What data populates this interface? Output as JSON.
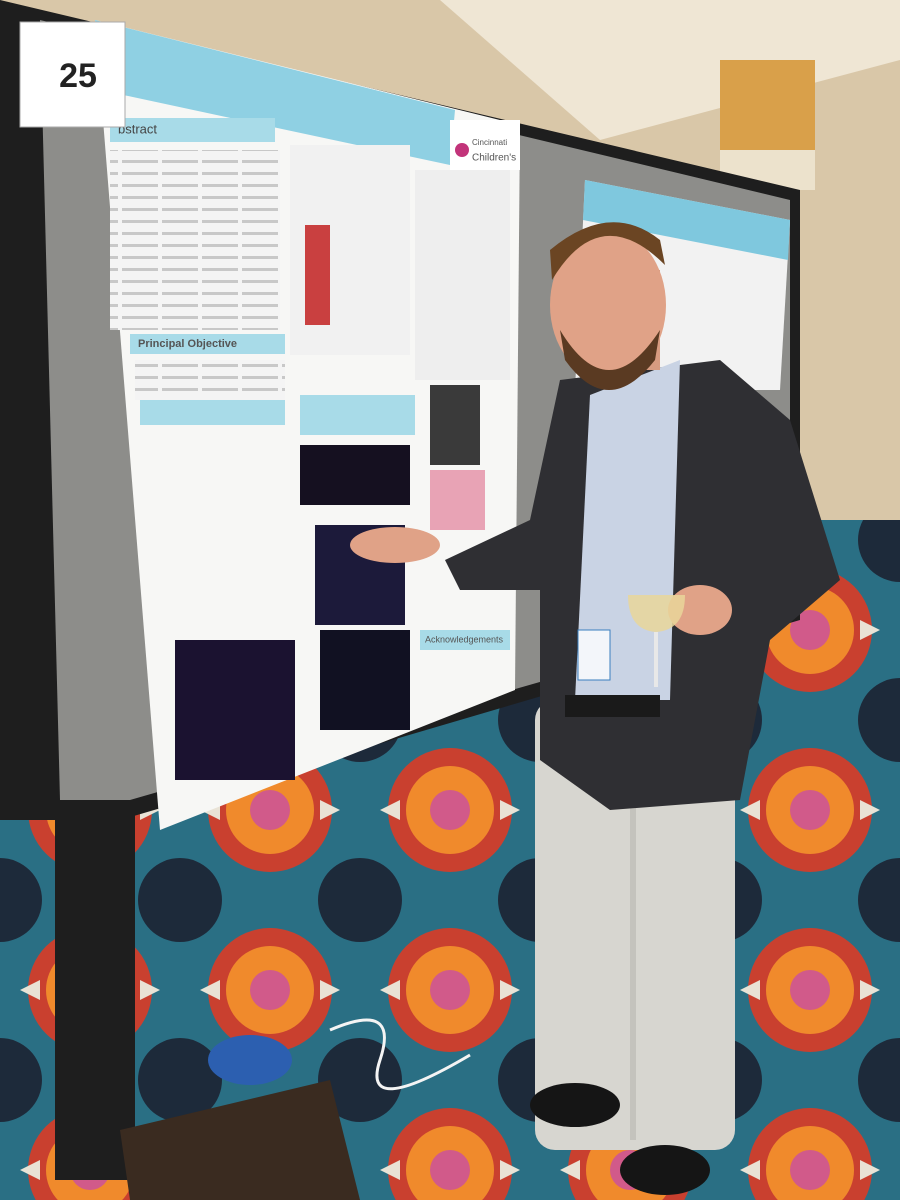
{
  "sign_number": "25",
  "poster": {
    "abstract_heading": "bstract",
    "objective_heading": "Principal Objective",
    "logo_line1": "Cincinnati",
    "logo_line2": "Children's",
    "acknowledgements_heading": "Acknowledgements"
  }
}
